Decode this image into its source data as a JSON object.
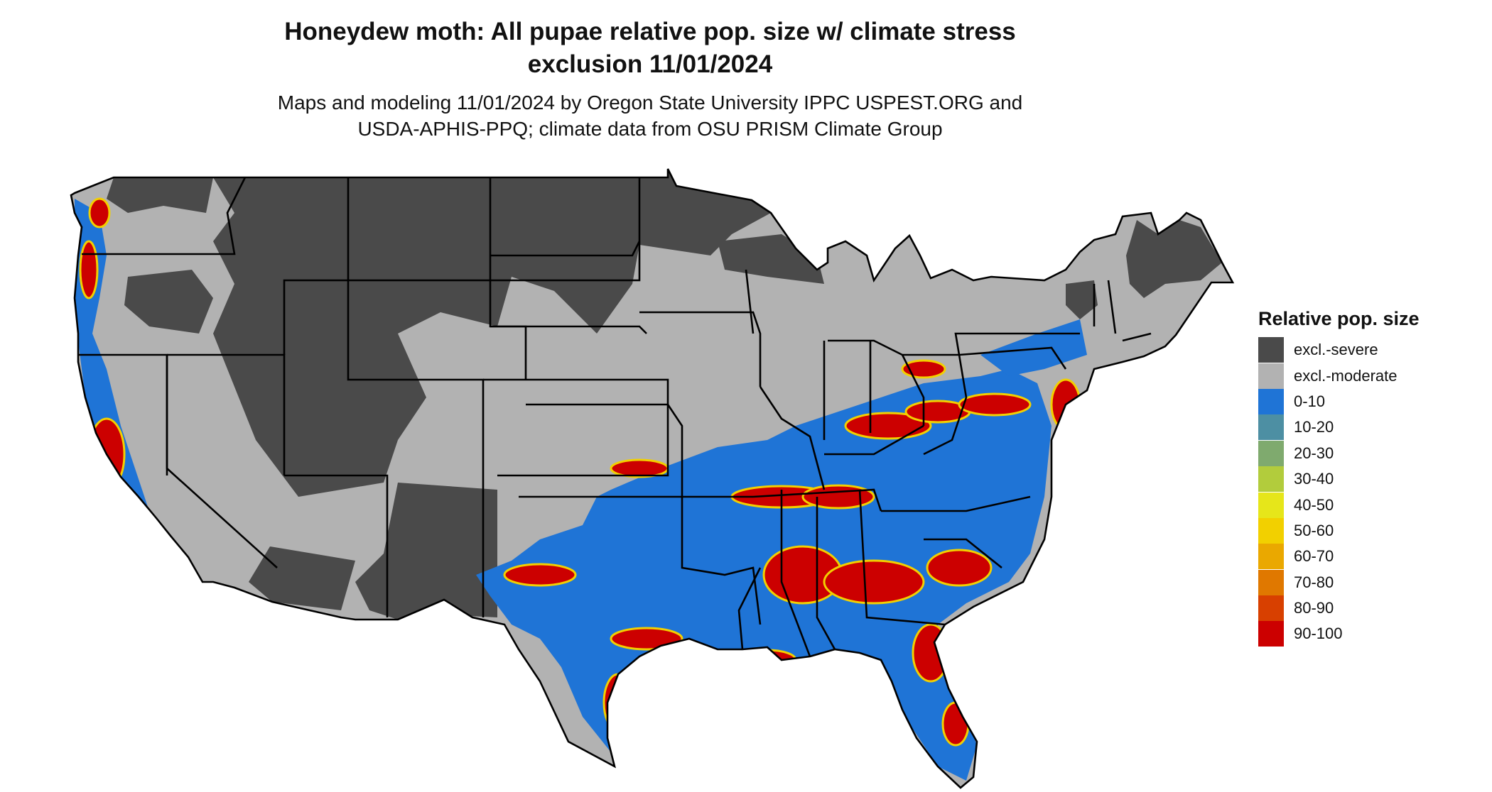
{
  "title_line1": "Honeydew moth: All pupae relative pop. size w/ climate stress",
  "title_line2": "exclusion 11/01/2024",
  "subtitle_line1": "Maps and modeling 11/01/2024 by Oregon State University IPPC USPEST.ORG and",
  "subtitle_line2": "USDA-APHIS-PPQ; climate data from OSU PRISM Climate Group",
  "legend": {
    "title": "Relative pop. size",
    "items": [
      {
        "label": "excl.-severe",
        "color": "#4a4a4a"
      },
      {
        "label": "excl.-moderate",
        "color": "#b2b2b2"
      },
      {
        "label": "0-10",
        "color": "#1f74d6"
      },
      {
        "label": "10-20",
        "color": "#4d8fa3"
      },
      {
        "label": "20-30",
        "color": "#7faa6e"
      },
      {
        "label": "30-40",
        "color": "#b2cc3c"
      },
      {
        "label": "40-50",
        "color": "#e6e61a"
      },
      {
        "label": "50-60",
        "color": "#f2d000"
      },
      {
        "label": "60-70",
        "color": "#eaa800"
      },
      {
        "label": "70-80",
        "color": "#e07800"
      },
      {
        "label": "80-90",
        "color": "#d84000"
      },
      {
        "label": "90-100",
        "color": "#cc0000"
      }
    ]
  },
  "map": {
    "region": "Contiguous United States",
    "colors": {
      "severe": "#4a4a4a",
      "moderate": "#b2b2b2",
      "low": "#1f74d6",
      "high": "#cc0000",
      "mid": "#f2d000",
      "border": "#000000"
    }
  }
}
